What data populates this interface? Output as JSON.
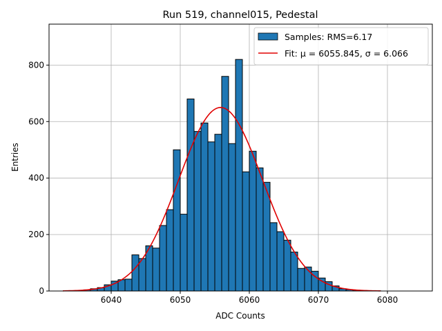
{
  "chart_data": {
    "type": "bar",
    "title": "Run 519, channel015, Pedestal",
    "xlabel": "ADC Counts",
    "ylabel": "Entries",
    "xlim": [
      6031,
      6086.5
    ],
    "ylim": [
      0,
      945
    ],
    "x_ticks": [
      6040,
      6050,
      6060,
      6070,
      6080
    ],
    "y_ticks": [
      0,
      200,
      400,
      600,
      800
    ],
    "grid": true,
    "bin_width": 1,
    "bin_starts": [
      6034,
      6035,
      6036,
      6037,
      6038,
      6039,
      6040,
      6041,
      6042,
      6043,
      6044,
      6045,
      6046,
      6047,
      6048,
      6049,
      6050,
      6051,
      6052,
      6053,
      6054,
      6055,
      6056,
      6057,
      6058,
      6059,
      6060,
      6061,
      6062,
      6063,
      6064,
      6065,
      6066,
      6067,
      6068,
      6069,
      6070,
      6071,
      6072,
      6073,
      6074,
      6075,
      6076,
      6077,
      6078,
      6079,
      6080,
      6081,
      6082,
      6083
    ],
    "values": [
      1,
      2,
      4,
      8,
      12,
      22,
      35,
      40,
      42,
      128,
      115,
      160,
      152,
      232,
      288,
      500,
      272,
      680,
      565,
      595,
      528,
      555,
      760,
      522,
      820,
      422,
      495,
      436,
      385,
      242,
      210,
      180,
      138,
      80,
      85,
      70,
      46,
      33,
      18,
      8,
      5,
      3,
      2,
      1,
      1,
      0,
      0,
      0,
      0,
      0
    ],
    "series": [
      {
        "name": "Samples: RMS=6.17",
        "kind": "histogram",
        "color": "#1f77b4"
      },
      {
        "name": "Fit: μ = 6055.845, σ = 6.066",
        "kind": "gaussian_fit",
        "color": "#e00000",
        "amplitude": 650,
        "mu": 6055.845,
        "sigma": 6.066,
        "x_range": [
          6033,
          6079
        ]
      }
    ],
    "legend": {
      "position": "top-right",
      "entries": [
        {
          "mu_sym": "μ",
          "sigma_sym": "σ"
        }
      ]
    }
  }
}
